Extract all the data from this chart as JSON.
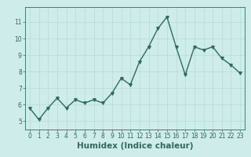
{
  "x": [
    0,
    1,
    2,
    3,
    4,
    5,
    6,
    7,
    8,
    9,
    10,
    11,
    12,
    13,
    14,
    15,
    16,
    17,
    18,
    19,
    20,
    21,
    22,
    23
  ],
  "y": [
    5.8,
    5.1,
    5.8,
    6.4,
    5.8,
    6.3,
    6.1,
    6.3,
    6.1,
    6.7,
    7.6,
    7.2,
    8.6,
    9.5,
    10.6,
    11.3,
    9.5,
    7.8,
    9.5,
    9.3,
    9.5,
    8.8,
    8.4,
    7.9
  ],
  "line_color": "#2d6b5e",
  "marker": "v",
  "marker_size": 2.5,
  "bg_color": "#ceecea",
  "grid_color": "#b8dbd8",
  "xlabel": "Humidex (Indice chaleur)",
  "ylim": [
    4.5,
    11.9
  ],
  "xlim": [
    -0.5,
    23.5
  ],
  "yticks": [
    5,
    6,
    7,
    8,
    9,
    10,
    11
  ],
  "xticks": [
    0,
    1,
    2,
    3,
    4,
    5,
    6,
    7,
    8,
    9,
    10,
    11,
    12,
    13,
    14,
    15,
    16,
    17,
    18,
    19,
    20,
    21,
    22,
    23
  ],
  "tick_fontsize": 5.5,
  "xlabel_fontsize": 7.5,
  "line_width": 1.0
}
